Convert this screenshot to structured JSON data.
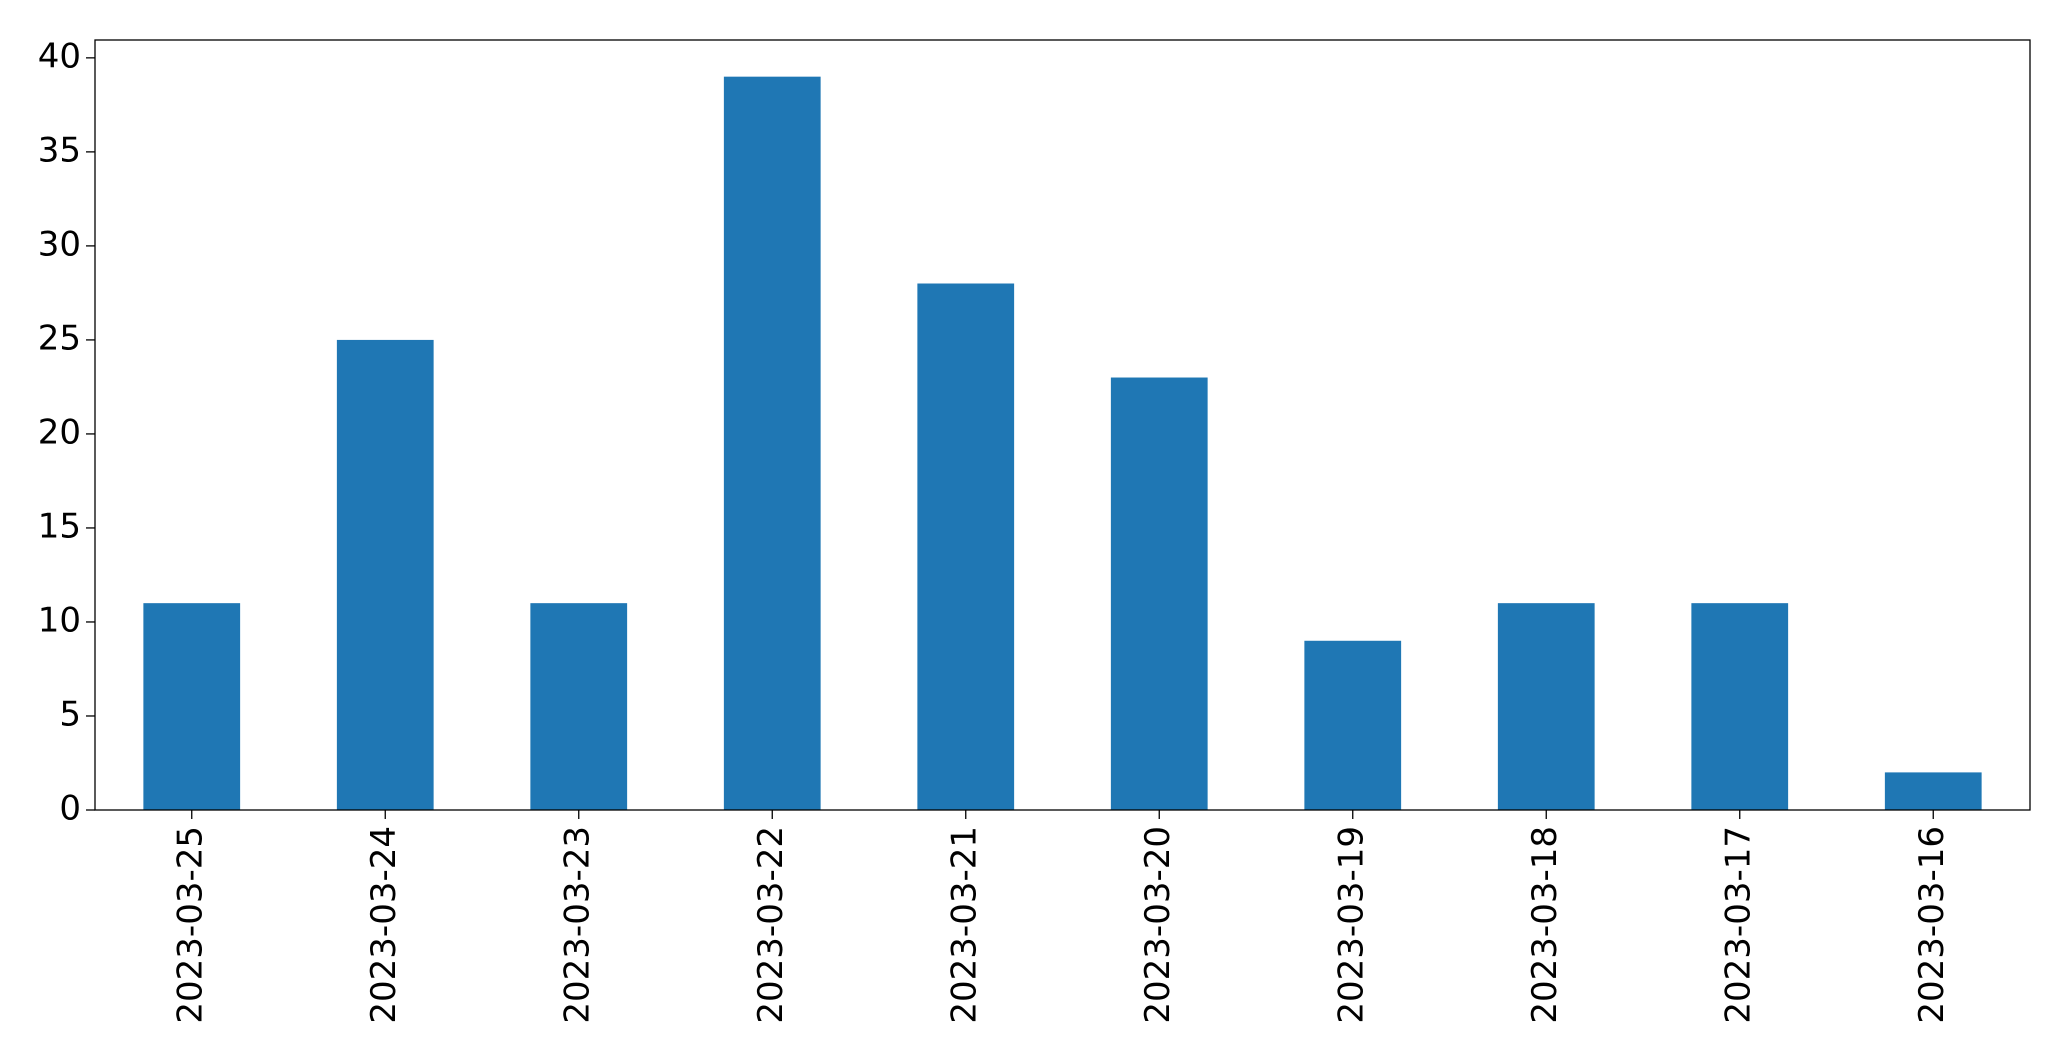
{
  "chart_data": {
    "type": "bar",
    "categories": [
      "2023-03-25",
      "2023-03-24",
      "2023-03-23",
      "2023-03-22",
      "2023-03-21",
      "2023-03-20",
      "2023-03-19",
      "2023-03-18",
      "2023-03-17",
      "2023-03-16"
    ],
    "values": [
      11,
      25,
      11,
      39,
      28,
      23,
      9,
      11,
      11,
      2
    ],
    "color": "#1f77b4",
    "ylim": [
      0,
      40.95
    ],
    "yticks": [
      0,
      5,
      10,
      15,
      20,
      25,
      30,
      35,
      40
    ],
    "grid": false
  }
}
